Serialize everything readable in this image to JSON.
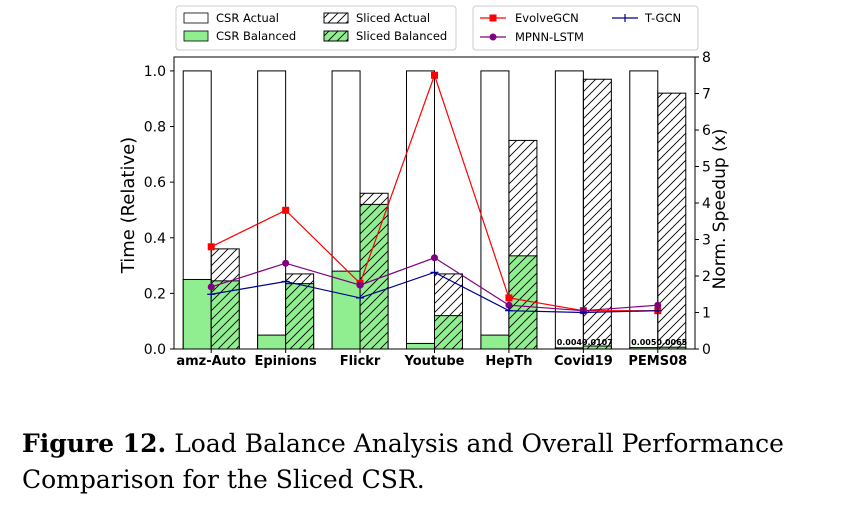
{
  "caption": {
    "label": "Figure 12.",
    "text": "Load Balance Analysis and Overall Performance Comparison for the Sliced CSR."
  },
  "colors": {
    "balanced": "#90ee90",
    "evolvegcn": "#ff0000",
    "mpnn_lstm": "#800080",
    "tgcn": "#00008b"
  },
  "chart_data": {
    "type": "bar",
    "categories": [
      "amz-Auto",
      "Epinions",
      "Flickr",
      "Youtube",
      "HepTh",
      "Covid19",
      "PEMS08"
    ],
    "ylabel": "Time (Relative)",
    "y2label": "Norm. Speedup (x)",
    "ylim": [
      0,
      1.05
    ],
    "y2lim": [
      0,
      8
    ],
    "yticks": [
      "0.0",
      "0.2",
      "0.4",
      "0.6",
      "0.8",
      "1.0"
    ],
    "y2ticks": [
      "0",
      "1",
      "2",
      "3",
      "4",
      "5",
      "6",
      "7",
      "8"
    ],
    "legend": "top",
    "series": [
      {
        "name": "CSR Actual",
        "kind": "bar",
        "values": [
          1.0,
          1.0,
          1.0,
          1.0,
          1.0,
          1.0,
          1.0
        ]
      },
      {
        "name": "CSR Balanced",
        "kind": "bar",
        "values": [
          0.25,
          0.05,
          0.28,
          0.02,
          0.05,
          0.004,
          0.005
        ]
      },
      {
        "name": "Sliced Actual",
        "kind": "bar",
        "values": [
          0.36,
          0.27,
          0.56,
          0.27,
          0.75,
          0.97,
          0.92
        ]
      },
      {
        "name": "Sliced Balanced",
        "kind": "bar",
        "values": [
          0.245,
          0.235,
          0.52,
          0.12,
          0.335,
          0.0107,
          0.0065
        ]
      },
      {
        "name": "EvolveGCN",
        "kind": "line",
        "axis": "right",
        "values": [
          2.8,
          3.8,
          1.8,
          7.5,
          1.4,
          1.05,
          1.05
        ]
      },
      {
        "name": "MPNN-LSTM",
        "kind": "line",
        "axis": "right",
        "values": [
          1.7,
          2.35,
          1.75,
          2.5,
          1.2,
          1.05,
          1.2
        ]
      },
      {
        "name": "T-GCN",
        "kind": "line",
        "axis": "right",
        "values": [
          1.5,
          1.85,
          1.4,
          2.1,
          1.05,
          1.0,
          1.05
        ]
      }
    ],
    "annotations": [
      {
        "category": "Covid19",
        "labels": [
          "0.004",
          "0.0107"
        ]
      },
      {
        "category": "PEMS08",
        "labels": [
          "0.005",
          "0.0065"
        ]
      }
    ]
  }
}
